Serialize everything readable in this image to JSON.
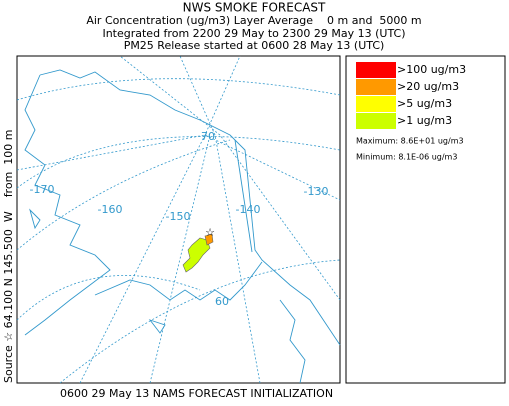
{
  "header": {
    "title": "NWS SMOKE FORECAST",
    "lines": [
      "Air Concentration (ug/m3) Layer Average    0 m and  5000 m",
      "Integrated from 2200 29 May to 2300 29 May 13 (UTC)",
      "PM25 Release started at 0600 28 May 13 (UTC)"
    ]
  },
  "side_label": "Source ☆ 64.100 N 145.500  W    from  100 m",
  "footer": "0600 29 May 13 NAMS FORECAST INITIALIZATION",
  "legend": {
    "items": [
      {
        "label": ">100 ug/m3",
        "color": "#ff0000"
      },
      {
        "label": ">20 ug/m3",
        "color": "#ff9900"
      },
      {
        "label": ">5 ug/m3",
        "color": "#ffff00"
      },
      {
        "label": ">1 ug/m3",
        "color": "#ccff00"
      }
    ],
    "maximum": "Maximum: 8.6E+01 ug/m3",
    "minimum": "Minimum: 8.1E-06 ug/m3"
  },
  "map": {
    "labels": [
      "-170",
      "-160",
      "-150",
      "-140",
      "-130",
      "70",
      "60"
    ]
  }
}
